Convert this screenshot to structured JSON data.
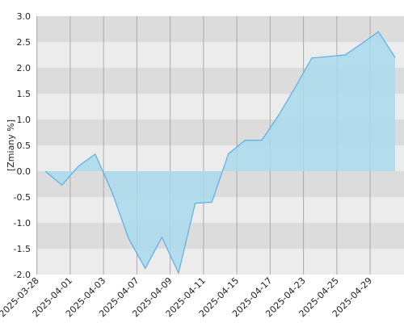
{
  "chart_data": {
    "type": "area",
    "y_label": "[Zmiany %]",
    "categories": [
      "2025-03-28",
      null,
      "2025-04-01",
      null,
      "2025-04-03",
      null,
      "2025-04-07",
      null,
      "2025-04-09",
      null,
      "2025-04-11",
      null,
      "2025-04-15",
      null,
      "2025-04-17",
      null,
      "2025-04-23",
      null,
      "2025-04-25",
      null,
      "2025-04-29",
      null
    ],
    "values": [
      0.0,
      -0.27,
      0.1,
      0.33,
      -0.4,
      -1.3,
      -1.88,
      -1.28,
      -1.97,
      -0.62,
      -0.6,
      0.34,
      0.6,
      0.6,
      1.08,
      1.62,
      2.19,
      2.22,
      2.25,
      2.47,
      2.7,
      2.2
    ],
    "color": "#5aaee6",
    "fill": "#a9d9ec",
    "ylim": [
      -2,
      3
    ],
    "yticks": [
      {
        "value": -2,
        "label": "-2.0"
      },
      -1.5,
      {
        "value": -1,
        "label": "-1.0"
      },
      -0.5,
      {
        "value": 0,
        "label": "0.0"
      },
      0.5,
      {
        "value": 1,
        "label": "1.0"
      },
      1.5,
      {
        "value": 2,
        "label": "2.0"
      },
      2.5,
      {
        "value": 3,
        "label": "3.0"
      }
    ],
    "grid": true
  }
}
